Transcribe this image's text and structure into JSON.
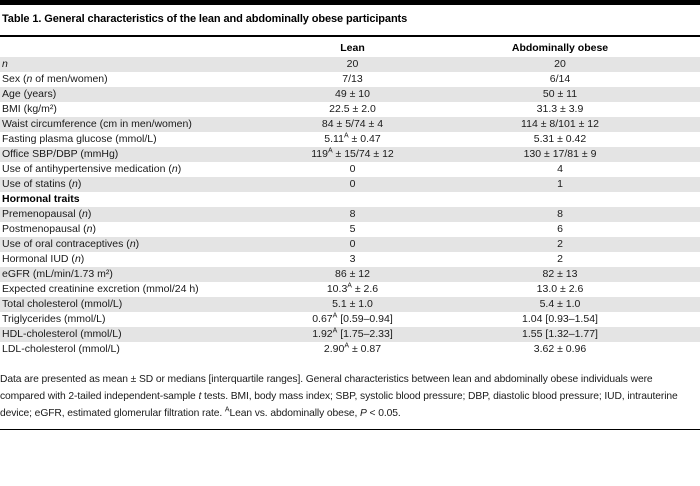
{
  "title": "Table 1. General characteristics of the lean and abdominally obese participants",
  "table": {
    "columns": [
      "Lean",
      "Abdominally obese"
    ],
    "rows": [
      {
        "label": "*n*",
        "lean": "20",
        "obese": "20"
      },
      {
        "label": "Sex (*n* of men/women)",
        "lean": "7/13",
        "obese": "6/14"
      },
      {
        "label": "Age (years)",
        "lean": "49 ± 10",
        "obese": "50 ± 11"
      },
      {
        "label": "BMI (kg/m²)",
        "lean": "22.5 ± 2.0",
        "obese": "31.3 ± 3.9"
      },
      {
        "label": "Waist circumference (cm in men/women)",
        "lean": "84 ± 5/74 ± 4",
        "obese": "114 ± 8/101 ± 12"
      },
      {
        "label": "Fasting plasma glucose (mmol/L)",
        "lean": "5.11^A ± 0.47",
        "obese": "5.31 ± 0.42"
      },
      {
        "label": "Office SBP/DBP (mmHg)",
        "lean": "119^A ± 15/74 ± 12",
        "obese": "130 ± 17/81 ± 9"
      },
      {
        "label": "Use of antihypertensive medication (*n*)",
        "lean": "0",
        "obese": "4"
      },
      {
        "label": "Use of statins (*n*)",
        "lean": "0",
        "obese": "1"
      },
      {
        "label": "Hormonal traits",
        "section": true,
        "lean": "",
        "obese": ""
      },
      {
        "label": "Premenopausal (*n*)",
        "lean": "8",
        "obese": "8"
      },
      {
        "label": "Postmenopausal (*n*)",
        "lean": "5",
        "obese": "6"
      },
      {
        "label": "Use of oral contraceptives (*n*)",
        "lean": "0",
        "obese": "2"
      },
      {
        "label": "Hormonal IUD (*n*)",
        "lean": "3",
        "obese": "2"
      },
      {
        "label": "eGFR (mL/min/1.73 m²)",
        "lean": "86 ± 12",
        "obese": "82 ± 13"
      },
      {
        "label": "Expected creatinine excretion (mmol/24 h)",
        "lean": "10.3^A ± 2.6",
        "obese": "13.0 ± 2.6"
      },
      {
        "label": "Total cholesterol (mmol/L)",
        "lean": "5.1 ± 1.0",
        "obese": "5.4 ± 1.0"
      },
      {
        "label": "Triglycerides (mmol/L)",
        "lean": "0.67^A [0.59–0.94]",
        "obese": "1.04 [0.93–1.54]"
      },
      {
        "label": "HDL-cholesterol (mmol/L)",
        "lean": "1.92^A [1.75–2.33]",
        "obese": "1.55 [1.32–1.77]"
      },
      {
        "label": "LDL-cholesterol (mmol/L)",
        "lean": "2.90^A ± 0.87",
        "obese": "3.62 ± 0.96"
      }
    ]
  },
  "footnote": "Data are presented as mean ± SD or medians [interquartile ranges]. General characteristics between lean and abdominally obese individuals were compared with 2-tailed independent-sample *t* tests. BMI, body mass index; SBP, systolic blood pressure; DBP, diastolic blood pressure; IUD, intrauterine device; eGFR, estimated glomerular filtration rate. ^ALean vs. abdominally obese, *P* < 0.05.",
  "colors": {
    "row_stripe": "#e4e4e4",
    "rule": "#000000",
    "text": "#1a1a1a"
  }
}
